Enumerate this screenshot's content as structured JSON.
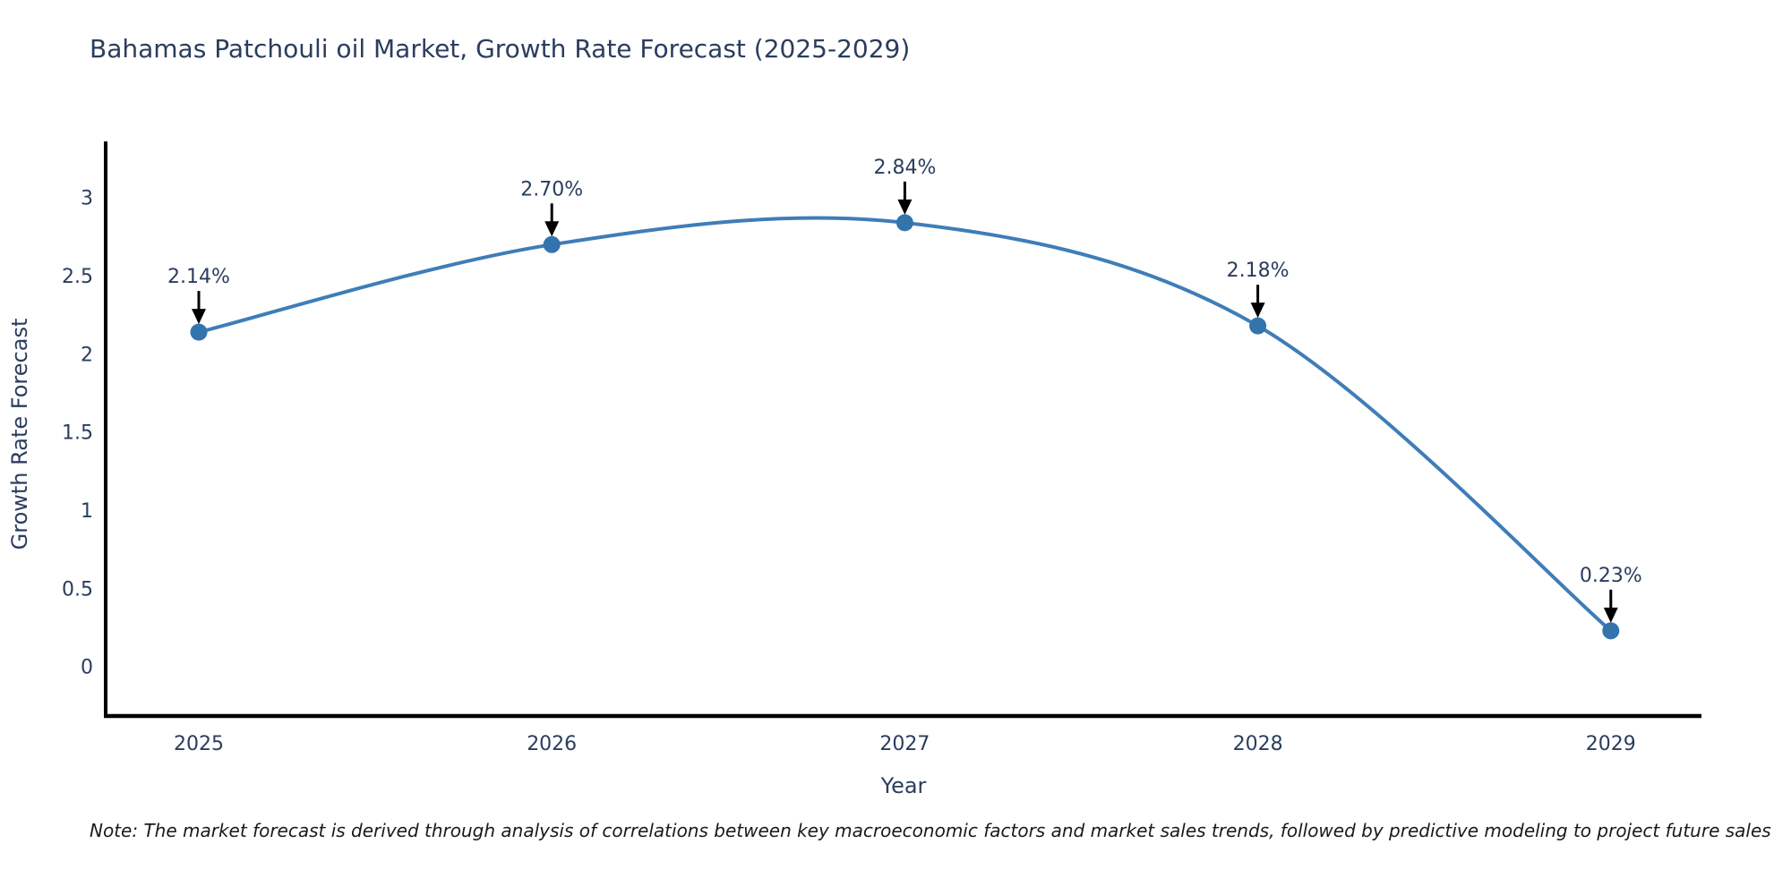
{
  "title": "Bahamas Patchouli oil Market, Growth Rate Forecast (2025-2029)",
  "note": "Note: The market forecast is derived through analysis of correlations between key macroeconomic factors and market sales trends, followed by predictive modeling to project future sales",
  "chart_data": {
    "type": "line",
    "title": "Bahamas Patchouli oil Market, Growth Rate Forecast (2025-2029)",
    "x": [
      "2025",
      "2026",
      "2027",
      "2028",
      "2029"
    ],
    "values": [
      2.14,
      2.7,
      2.84,
      2.18,
      0.23
    ],
    "point_labels": [
      "2.14%",
      "2.70%",
      "2.84%",
      "2.18%",
      "0.23%"
    ],
    "xlabel": "Year",
    "ylabel": "Growth Rate Forecast",
    "yticks": [
      0,
      0.5,
      1,
      1.5,
      2,
      2.5,
      3
    ],
    "ylim": [
      -0.33,
      3.36
    ],
    "grid": false,
    "legend": "none",
    "line_color": "#3f7db8",
    "marker_color": "#3474ad",
    "axis_color": "#000000",
    "text_color": "#2b3d5e",
    "annotation_arrow_color": "#000000",
    "curve": "spline"
  }
}
